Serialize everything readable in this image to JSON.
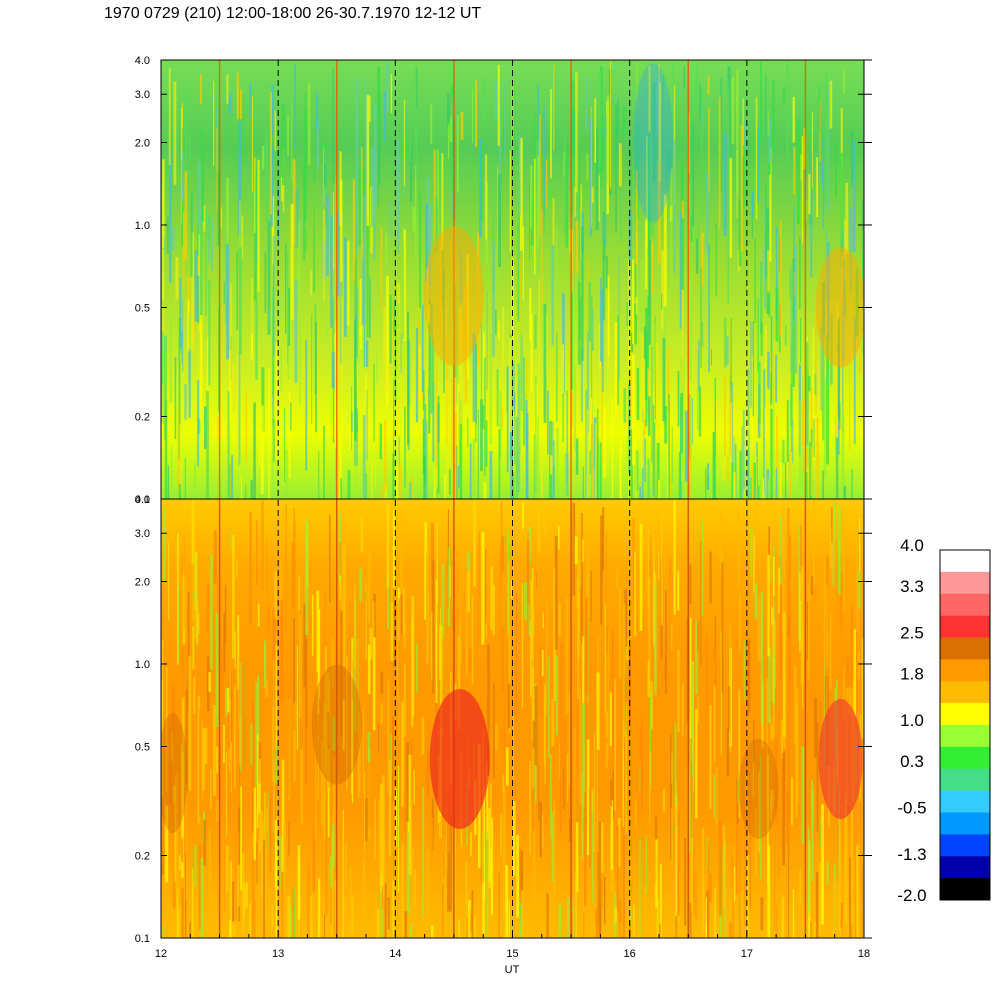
{
  "title": "1970 0729 (210) 12:00-18:00 26-30.7.1970  12-12 UT",
  "chart_data": {
    "type": "heatmap",
    "title": "1970 0729 (210) 12:00-18:00 26-30.7.1970  12-12 UT",
    "xlabel": "UT",
    "xlim": [
      12,
      18
    ],
    "x_ticks": [
      "12",
      "13",
      "14",
      "15",
      "16",
      "17",
      "18"
    ],
    "x_tick_values": [
      12,
      13,
      14,
      15,
      16,
      17,
      18
    ],
    "y_scale": "log",
    "grid": "dashed vertical lines at each hour",
    "panels": [
      {
        "name": "upper",
        "ylim": [
          0.1,
          4.0
        ],
        "y_ticks": [
          "0.1",
          "0.2",
          "0.5",
          "1.0",
          "2.0",
          "3.0",
          "4.0"
        ],
        "y_tick_values": [
          0.1,
          0.2,
          0.5,
          1.0,
          2.0,
          3.0,
          4.0
        ],
        "dominant_colors": "green / yellow-green, blue streaks at high frequency, orange near 0.5 around 14.5 UT"
      },
      {
        "name": "lower",
        "ylim": [
          0.1,
          4.0
        ],
        "y_ticks": [
          "0.1",
          "0.2",
          "0.5",
          "1.0",
          "2.0",
          "3.0",
          "4.0"
        ],
        "y_tick_values": [
          0.1,
          0.2,
          0.5,
          1.0,
          2.0,
          3.0,
          4.0
        ],
        "dominant_colors": "orange / yellow, red maxima near 0.3-0.6 around 14.5 UT and 17.8 UT"
      }
    ],
    "colorbar": {
      "labels": [
        "4.0",
        "3.3",
        "2.5",
        "1.8",
        "1.0",
        "0.3",
        "-0.5",
        "-1.3",
        "-2.0"
      ],
      "label_values": [
        4.0,
        3.3,
        2.5,
        1.8,
        1.0,
        0.3,
        -0.5,
        -1.3,
        -2.0
      ],
      "range": [
        -2.0,
        4.0
      ],
      "colors_top_to_bottom": [
        "#ffffff",
        "#ff9999",
        "#ff6666",
        "#ff3333",
        "#d97000",
        "#ff9900",
        "#ffbb00",
        "#ffff00",
        "#99ff33",
        "#33ee33",
        "#44dd88",
        "#33ccff",
        "#0099ff",
        "#0044ff",
        "#0000aa",
        "#000000"
      ]
    }
  }
}
